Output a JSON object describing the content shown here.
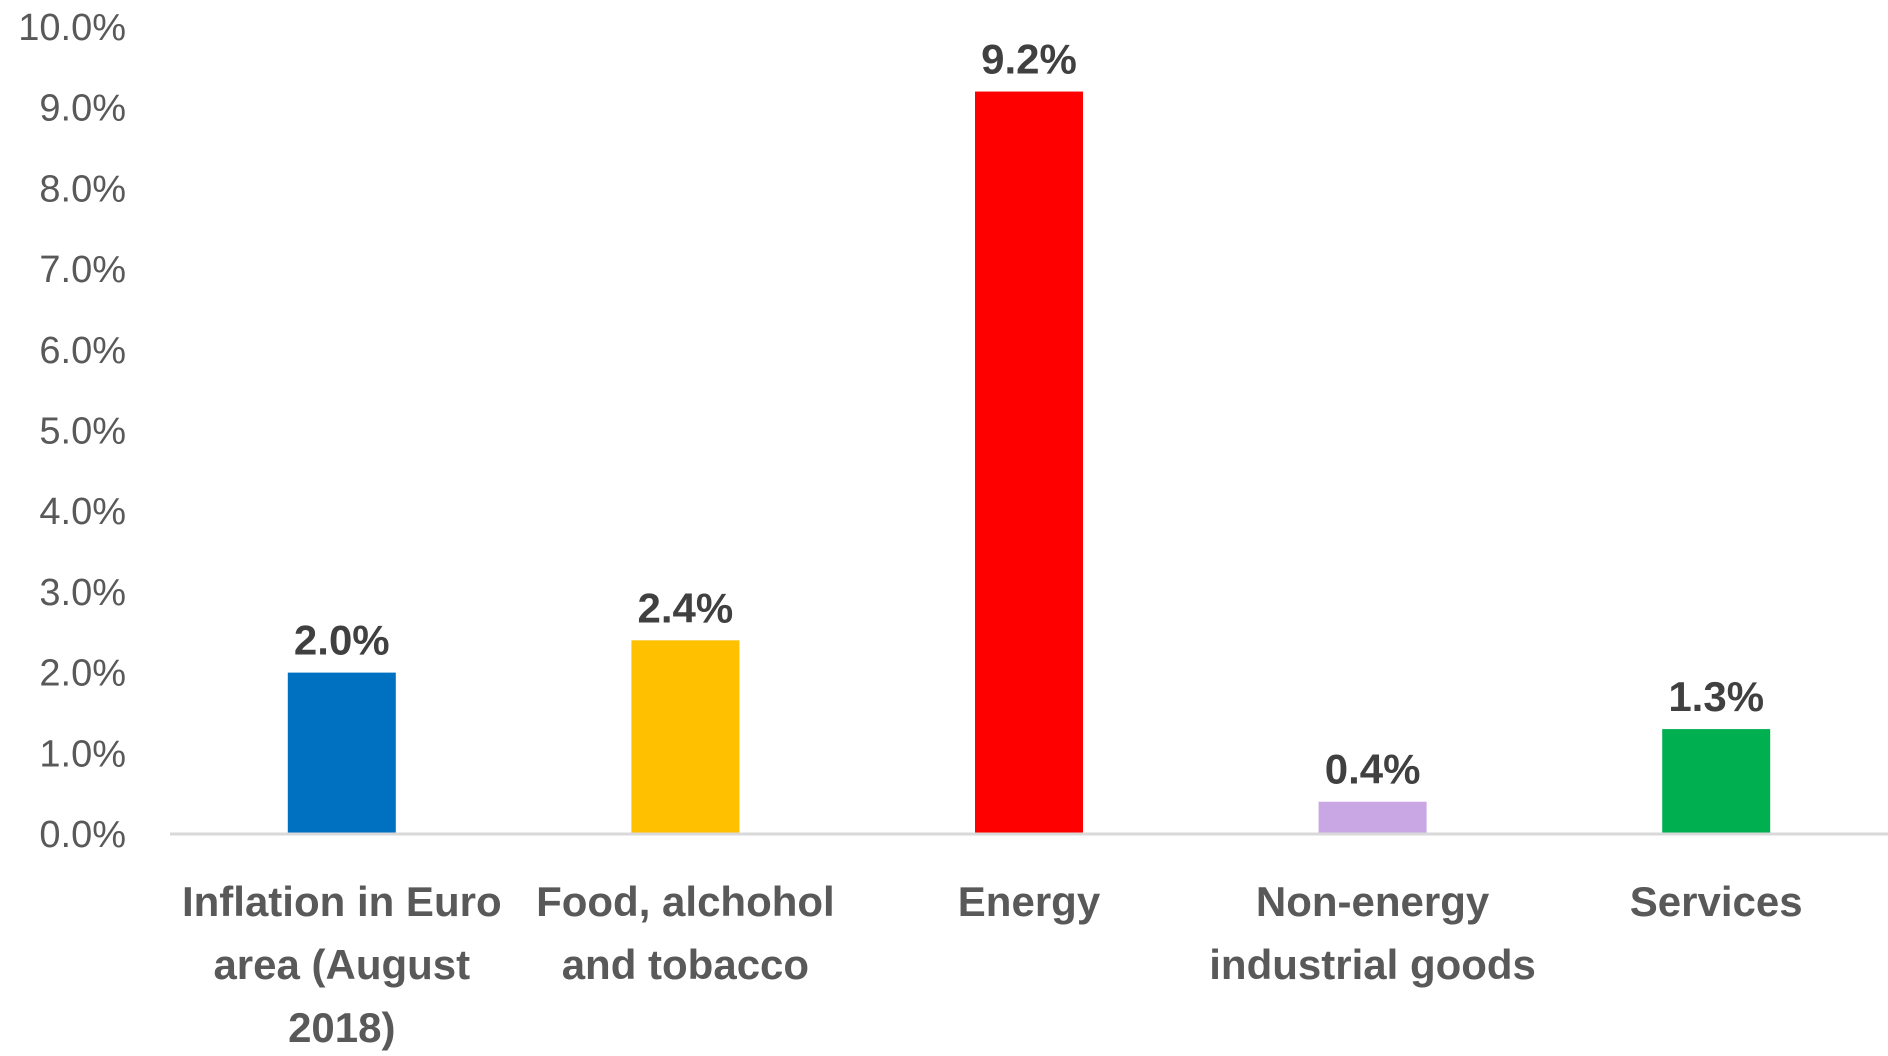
{
  "chart_data": {
    "type": "bar",
    "title": "",
    "xlabel": "",
    "ylabel": "",
    "ylim": [
      0,
      10
    ],
    "grid": false,
    "legend": "none",
    "y_tick_values": [
      0,
      1,
      2,
      3,
      4,
      5,
      6,
      7,
      8,
      9,
      10
    ],
    "y_tick_labels": [
      "0.0%",
      "1.0%",
      "2.0%",
      "3.0%",
      "4.0%",
      "5.0%",
      "6.0%",
      "7.0%",
      "8.0%",
      "9.0%",
      "10.0%"
    ],
    "categories": [
      [
        "Inflation in Euro",
        "area (August",
        "2018)"
      ],
      [
        "Food, alchohol",
        "and tobacco"
      ],
      [
        "Energy"
      ],
      [
        "Non-energy",
        "industrial goods"
      ],
      [
        "Services"
      ]
    ],
    "values": [
      2.0,
      2.4,
      9.2,
      0.4,
      1.3
    ],
    "data_labels": [
      "2.0%",
      "2.4%",
      "9.2%",
      "0.4%",
      "1.3%"
    ],
    "colors": [
      "#0070C0",
      "#FFC000",
      "#FF0000",
      "#C9A6E4",
      "#00B050"
    ],
    "axis_color": "#D9D9D9"
  }
}
